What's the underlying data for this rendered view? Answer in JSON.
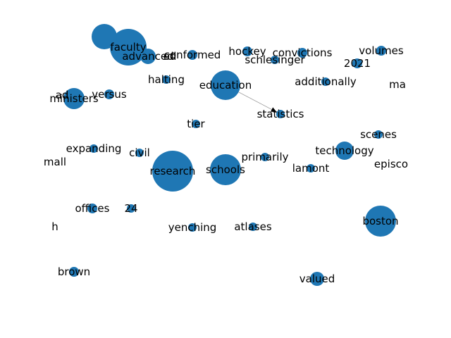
{
  "colors": {
    "node": "#1f77b4",
    "edge": "#9a9a9a",
    "label": "#000000",
    "background": "#ffffff"
  },
  "nodes": [
    {
      "id": "faculty",
      "label": "faculty",
      "r": 26
    },
    {
      "id": "unknown-top",
      "label": "",
      "r": 18
    },
    {
      "id": "advanced",
      "label": "advanced",
      "r": 11
    },
    {
      "id": "conformed",
      "label": "conformed",
      "r": 7
    },
    {
      "id": "ed",
      "label": "ed",
      "r": 0
    },
    {
      "id": "hockey",
      "label": "hockey",
      "r": 7
    },
    {
      "id": "convictions",
      "label": "convictions",
      "r": 7
    },
    {
      "id": "schlesinger",
      "label": "schlesinger",
      "r": 6
    },
    {
      "id": "2021",
      "label": "2021",
      "r": 7
    },
    {
      "id": "volumes",
      "label": "volumes",
      "r": 7
    },
    {
      "id": "halting",
      "label": "halting",
      "r": 6
    },
    {
      "id": "education",
      "label": "education",
      "r": 21
    },
    {
      "id": "additionally",
      "label": "additionally",
      "r": 6
    },
    {
      "id": "ma",
      "label": "ma",
      "r": 0
    },
    {
      "id": "ministers",
      "label": "ministers",
      "r": 15
    },
    {
      "id": "versus",
      "label": "versus",
      "r": 7
    },
    {
      "id": "ad",
      "label": "ad",
      "r": 0
    },
    {
      "id": "statistics",
      "label": "statistics",
      "r": 6
    },
    {
      "id": "tier",
      "label": "tier",
      "r": 6
    },
    {
      "id": "scenes",
      "label": "scenes",
      "r": 6
    },
    {
      "id": "expanding",
      "label": "expanding",
      "r": 6
    },
    {
      "id": "civil",
      "label": "civil",
      "r": 6
    },
    {
      "id": "technology",
      "label": "technology",
      "r": 13
    },
    {
      "id": "primarily",
      "label": "primarily",
      "r": 6
    },
    {
      "id": "mall",
      "label": "mall",
      "r": 0
    },
    {
      "id": "episco",
      "label": "episco",
      "r": 0
    },
    {
      "id": "research",
      "label": "research",
      "r": 29
    },
    {
      "id": "schools",
      "label": "schools",
      "r": 22
    },
    {
      "id": "lamont",
      "label": "lamont",
      "r": 6
    },
    {
      "id": "offices",
      "label": "offices",
      "r": 7
    },
    {
      "id": "24",
      "label": "24",
      "r": 6
    },
    {
      "id": "boston",
      "label": "boston",
      "r": 22
    },
    {
      "id": "h",
      "label": "h",
      "r": 0
    },
    {
      "id": "yenching",
      "label": "yenching",
      "r": 6
    },
    {
      "id": "atlases",
      "label": "atlases",
      "r": 6
    },
    {
      "id": "brown",
      "label": "brown",
      "r": 7
    },
    {
      "id": "valued",
      "label": "valued",
      "r": 10
    },
    {
      "id": "bottom-fragment",
      "label": "",
      "r": 0
    }
  ],
  "edges": [
    {
      "source": "education",
      "target": "statistics",
      "directed": true
    }
  ]
}
